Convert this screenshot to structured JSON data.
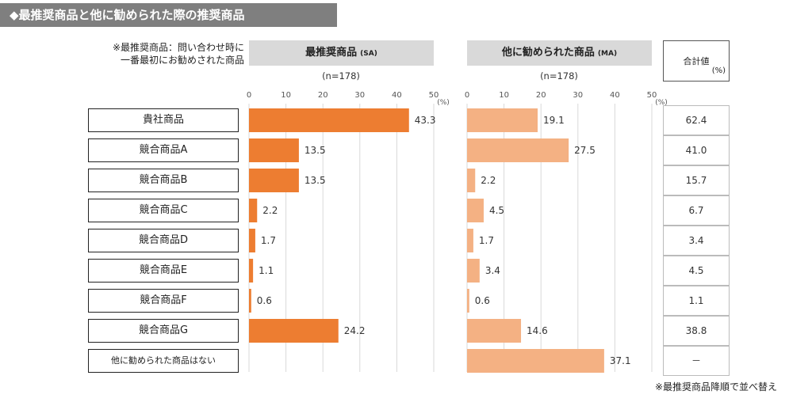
{
  "header": {
    "title": "◆最推奨商品と他に勧められた際の推奨商品",
    "note_line1": "※最推奨商品：問い合わせ時に",
    "note_line2": "一番最初にお勧めされた商品",
    "footnote": "※最推奨商品降順で並べ替え"
  },
  "panels": {
    "left_title": "最推奨商品",
    "left_tag": "(SA)",
    "left_n": "(n=178)",
    "right_title": "他に勧められた商品",
    "right_tag": "(MA)",
    "right_n": "(n=178)",
    "total_title": "合計値",
    "total_unit": "(%)"
  },
  "axis": {
    "ticks": [
      "0",
      "10",
      "20",
      "30",
      "40",
      "50"
    ],
    "unit": "(%)"
  },
  "colors": {
    "left_bar": "#ed7d31",
    "right_bar": "#f4b183",
    "grid": "#d9d9d9",
    "title_bg": "#7f7f7f"
  },
  "chart_data": {
    "type": "bar",
    "orientation": "horizontal",
    "categories": [
      "貴社商品",
      "競合商品A",
      "競合商品B",
      "競合商品C",
      "競合商品D",
      "競合商品E",
      "競合商品F",
      "競合商品G",
      "他に勧められた商品はない"
    ],
    "series": [
      {
        "name": "最推奨商品",
        "values": [
          43.3,
          13.5,
          13.5,
          2.2,
          1.7,
          1.1,
          0.6,
          24.2,
          null
        ],
        "labels": [
          "43.3",
          "13.5",
          "13.5",
          "2.2",
          "1.7",
          "1.1",
          "0.6",
          "24.2",
          ""
        ]
      },
      {
        "name": "他に勧められた商品",
        "values": [
          19.1,
          27.5,
          2.2,
          4.5,
          1.7,
          3.4,
          0.6,
          14.6,
          37.1
        ],
        "labels": [
          "19.1",
          "27.5",
          "2.2",
          "4.5",
          "1.7",
          "3.4",
          "0.6",
          "14.6",
          "37.1"
        ]
      }
    ],
    "totals": [
      "62.4",
      "41.0",
      "15.7",
      "6.7",
      "3.4",
      "4.5",
      "1.1",
      "38.8",
      "－"
    ],
    "xlim": [
      0,
      50
    ],
    "grid": true
  }
}
